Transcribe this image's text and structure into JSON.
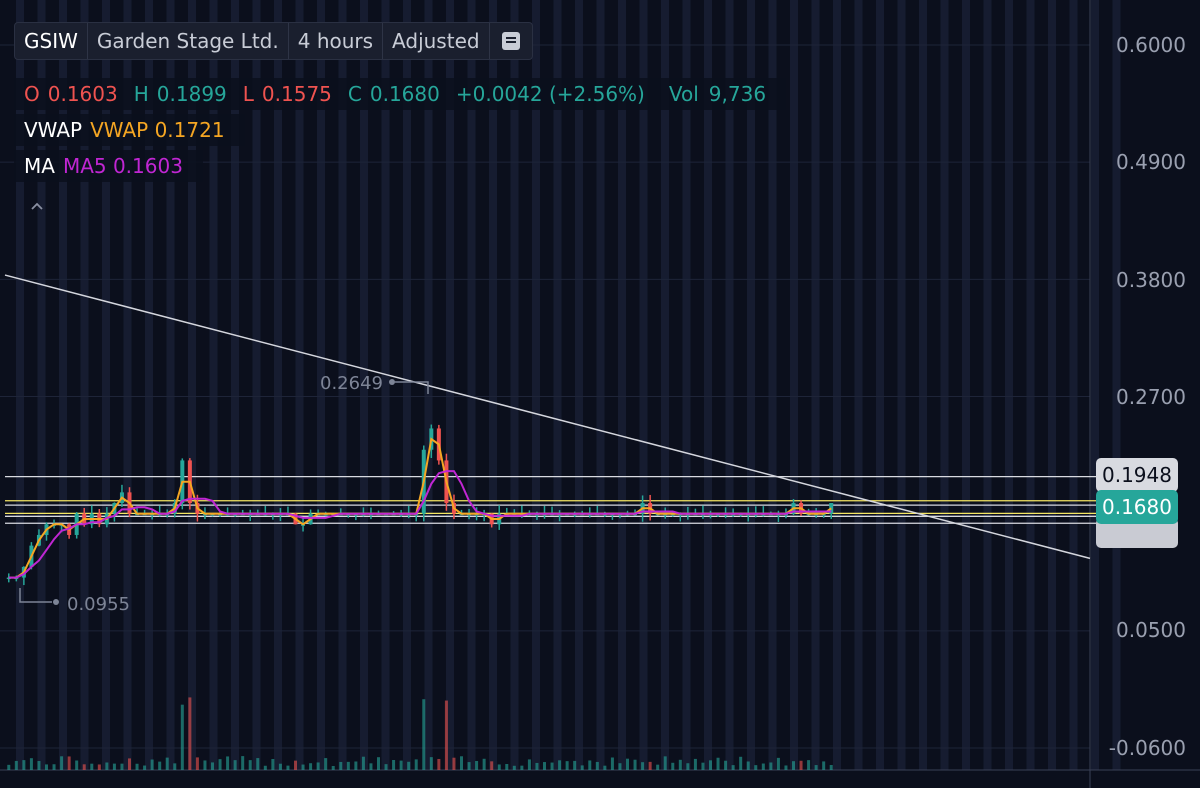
{
  "toolbar": {
    "symbol": "GSIW",
    "name": "Garden Stage Ltd.",
    "interval": "4 hours",
    "adjustment": "Adjusted",
    "menu_icon": "list-icon"
  },
  "ohlc": {
    "o_label": "O",
    "o_value": "0.1603",
    "h_label": "H",
    "h_value": "0.1899",
    "l_label": "L",
    "l_value": "0.1575",
    "c_label": "C",
    "c_value": "0.1680",
    "change": "+0.0042 (+2.56%)",
    "vol_label": "Vol",
    "vol_value": "9,736"
  },
  "indicators": {
    "vwap_name": "VWAP",
    "vwap_value": "VWAP 0.1721",
    "ma_name": "MA",
    "ma_value": "MA5 0.1603"
  },
  "collapse_icon": "chevron-up-icon",
  "colors": {
    "up": "#26a69a",
    "down": "#ef5350",
    "vwap": "#f5a623",
    "ma": "#c026d3",
    "background": "#0b0f1c",
    "last_price_tag": "#26a69a"
  },
  "chart_data": {
    "type": "candlestick",
    "y_ticks": [
      "0.6000",
      "0.4900",
      "0.3800",
      "0.2700",
      "0.0500",
      "-0.0600"
    ],
    "ylim": [
      -0.08,
      0.62
    ],
    "annotations": {
      "high_marker": "0.2649",
      "low_marker": "0.0955"
    },
    "price_tags": {
      "level": "0.1948",
      "last": "0.1680"
    },
    "horizontal_levels": [
      0.1948,
      0.1721,
      0.168,
      0.1603,
      0.1575,
      0.151
    ],
    "trendline": {
      "start": 0.384,
      "end": 0.118
    },
    "close_series": [
      0.1,
      0.1,
      0.11,
      0.13,
      0.14,
      0.15,
      0.15,
      0.15,
      0.14,
      0.16,
      0.15,
      0.16,
      0.15,
      0.16,
      0.17,
      0.18,
      0.16,
      0.16,
      0.16,
      0.16,
      0.16,
      0.16,
      0.17,
      0.21,
      0.17,
      0.16,
      0.16,
      0.16,
      0.16,
      0.16,
      0.16,
      0.16,
      0.16,
      0.16,
      0.16,
      0.16,
      0.16,
      0.16,
      0.15,
      0.15,
      0.16,
      0.16,
      0.16,
      0.16,
      0.16,
      0.16,
      0.16,
      0.16,
      0.16,
      0.16,
      0.16,
      0.16,
      0.16,
      0.16,
      0.16,
      0.22,
      0.24,
      0.21,
      0.17,
      0.16,
      0.16,
      0.16,
      0.16,
      0.16,
      0.15,
      0.16,
      0.16,
      0.16,
      0.16,
      0.16,
      0.16,
      0.16,
      0.16,
      0.16,
      0.16,
      0.16,
      0.16,
      0.16,
      0.16,
      0.16,
      0.16,
      0.16,
      0.16,
      0.16,
      0.17,
      0.16,
      0.16,
      0.16,
      0.16,
      0.16,
      0.16,
      0.16,
      0.16,
      0.16,
      0.16,
      0.16,
      0.16,
      0.16,
      0.16,
      0.16,
      0.16,
      0.16,
      0.16,
      0.16,
      0.17,
      0.16,
      0.16,
      0.16,
      0.16,
      0.17
    ]
  }
}
